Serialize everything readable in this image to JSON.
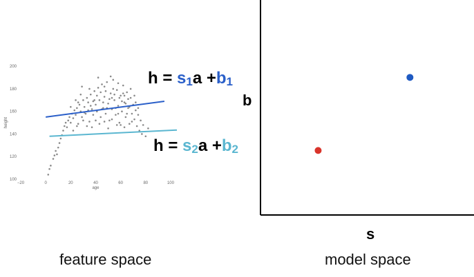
{
  "feature_space": {
    "caption": "feature space",
    "chart_data": {
      "type": "scatter",
      "xlabel": "age",
      "ylabel": "height",
      "xlim": [
        -20,
        105
      ],
      "ylim": [
        100,
        205
      ],
      "xticks": [
        "−20",
        "0",
        "20",
        "40",
        "60",
        "80",
        "100"
      ],
      "yticks": [
        "100",
        "120",
        "140",
        "160",
        "180",
        "200"
      ],
      "series": [
        {
          "kind": "points",
          "color": "#8a8a8a",
          "points": [
            [
              2,
              104
            ],
            [
              3,
              109
            ],
            [
              4,
              112
            ],
            [
              6,
              118
            ],
            [
              7,
              121
            ],
            [
              8,
              125
            ],
            [
              9,
              122
            ],
            [
              10,
              128
            ],
            [
              11,
              132
            ],
            [
              12,
              136
            ],
            [
              13,
              139
            ],
            [
              14,
              143
            ],
            [
              15,
              147
            ],
            [
              16,
              150
            ],
            [
              17,
              146
            ],
            [
              18,
              152
            ],
            [
              19,
              155
            ],
            [
              20,
              150
            ],
            [
              21,
              158
            ],
            [
              22,
              154
            ],
            [
              23,
              161
            ],
            [
              24,
              157
            ],
            [
              25,
              163
            ],
            [
              26,
              149
            ],
            [
              27,
              166
            ],
            [
              28,
              160
            ],
            [
              29,
              155
            ],
            [
              30,
              170
            ],
            [
              31,
              164
            ],
            [
              32,
              158
            ],
            [
              33,
              172
            ],
            [
              34,
              168
            ],
            [
              35,
              151
            ],
            [
              36,
              175
            ],
            [
              37,
              162
            ],
            [
              38,
              157
            ],
            [
              39,
              178
            ],
            [
              40,
              166
            ],
            [
              41,
              160
            ],
            [
              42,
              181
            ],
            [
              43,
              170
            ],
            [
              44,
              155
            ],
            [
              45,
              184
            ],
            [
              46,
              163
            ],
            [
              47,
              173
            ],
            [
              48,
              158
            ],
            [
              49,
              186
            ],
            [
              50,
              167
            ],
            [
              51,
              152
            ],
            [
              52,
              176
            ],
            [
              53,
              162
            ],
            [
              54,
              188
            ],
            [
              55,
              170
            ],
            [
              56,
              157
            ],
            [
              57,
              179
            ],
            [
              58,
              165
            ],
            [
              59,
              150
            ],
            [
              60,
              174
            ],
            [
              61,
              160
            ],
            [
              62,
              183
            ],
            [
              63,
              168
            ],
            [
              64,
              155
            ],
            [
              65,
              177
            ],
            [
              66,
              163
            ],
            [
              67,
              149
            ],
            [
              68,
              172
            ],
            [
              69,
              158
            ],
            [
              70,
              166
            ],
            [
              71,
              153
            ],
            [
              72,
              161
            ],
            [
              73,
              147
            ],
            [
              74,
              157
            ],
            [
              75,
              143
            ],
            [
              76,
              152
            ],
            [
              77,
              140
            ],
            [
              78,
              148
            ],
            [
              80,
              138
            ],
            [
              82,
              145
            ],
            [
              28,
              175
            ],
            [
              33,
              147
            ],
            [
              38,
              169
            ],
            [
              43,
              149
            ],
            [
              48,
              178
            ],
            [
              53,
              153
            ],
            [
              58,
              185
            ],
            [
              63,
              146
            ],
            [
              68,
              180
            ],
            [
              31,
              159
            ],
            [
              36,
              165
            ],
            [
              41,
              174
            ],
            [
              46,
              168
            ],
            [
              51,
              171
            ],
            [
              56,
              163
            ],
            [
              61,
              169
            ],
            [
              66,
              171
            ],
            [
              71,
              174
            ],
            [
              26,
              168
            ],
            [
              35,
              180
            ],
            [
              45,
              162
            ],
            [
              55,
              175
            ],
            [
              65,
              158
            ],
            [
              40,
              152
            ],
            [
              50,
              145
            ],
            [
              60,
              148
            ],
            [
              42,
              190
            ],
            [
              52,
              191
            ],
            [
              22,
              143
            ],
            [
              29,
              182
            ],
            [
              25,
              147
            ],
            [
              67,
              164
            ],
            [
              57,
              148
            ],
            [
              47,
              151
            ],
            [
              37,
              146
            ],
            [
              62,
              176
            ],
            [
              72,
              168
            ],
            [
              44,
              177
            ],
            [
              34,
              161
            ],
            [
              54,
              180
            ],
            [
              64,
              167
            ],
            [
              39,
              170
            ],
            [
              49,
              163
            ],
            [
              59,
              172
            ],
            [
              69,
              151
            ],
            [
              74,
              163
            ],
            [
              30,
              152
            ],
            [
              24,
              170
            ],
            [
              20,
              164
            ],
            [
              58,
              158
            ],
            [
              47,
              182
            ],
            [
              53,
              172
            ],
            [
              63,
              174
            ]
          ]
        },
        {
          "kind": "line",
          "color": "#2a5fc9",
          "x": [
            0,
            95
          ],
          "y": [
            155,
            169
          ]
        },
        {
          "kind": "line",
          "color": "#5ab6d0",
          "x": [
            3,
            105
          ],
          "y": [
            138,
            143.5
          ]
        }
      ]
    },
    "equations": {
      "first": {
        "h": "h = ",
        "s": "s",
        "s_sub": "1",
        "a": "a +",
        "b": "b",
        "b_sub": "1",
        "color": "#2a5fc9"
      },
      "second": {
        "h": "h = ",
        "s": "s",
        "s_sub": "2",
        "a": "a +",
        "b": "b",
        "b_sub": "2",
        "color": "#5ab6d0"
      }
    }
  },
  "model_space": {
    "caption": "model space",
    "chart_data": {
      "type": "scatter",
      "xlabel": "s",
      "ylabel": "b",
      "series": [
        {
          "kind": "point",
          "color": "#d9342b",
          "x": 0.27,
          "y": 0.3
        },
        {
          "kind": "point",
          "color": "#1f5ac2",
          "x": 0.7,
          "y": 0.64
        }
      ]
    }
  }
}
